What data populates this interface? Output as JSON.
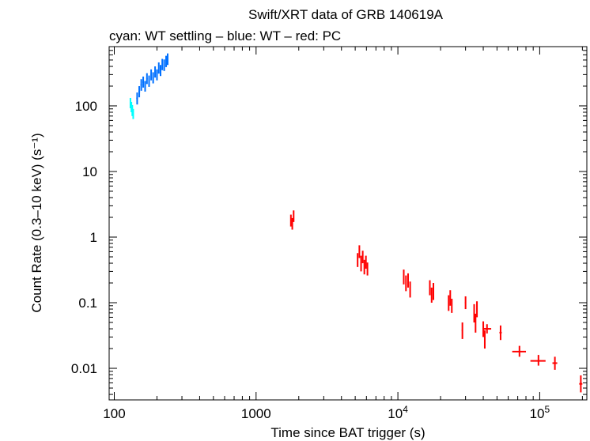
{
  "chart_data": {
    "type": "scatter",
    "title": "Swift/XRT data of GRB 140619A",
    "subtitle": "cyan: WT settling – blue: WT – red: PC",
    "xlabel": "Time since BAT trigger (s)",
    "ylabel": "Count Rate (0.3–10 keV) (s⁻¹)",
    "xscale": "log",
    "yscale": "log",
    "xlim": [
      92,
      215000
    ],
    "ylim": [
      0.0033,
      800
    ],
    "x_ticks": [
      {
        "value": 100,
        "label": "100"
      },
      {
        "value": 1000,
        "label": "1000"
      },
      {
        "value": 10000,
        "label": "10⁴"
      },
      {
        "value": 100000,
        "label": "10⁵"
      }
    ],
    "y_ticks": [
      {
        "value": 0.01,
        "label": "0.01"
      },
      {
        "value": 0.1,
        "label": "0.1"
      },
      {
        "value": 1,
        "label": "1"
      },
      {
        "value": 10,
        "label": "10"
      },
      {
        "value": 100,
        "label": "100"
      }
    ],
    "grid": false,
    "colors": {
      "wt_settling": "#00ffff",
      "wt": "#0070ff",
      "pc": "#ff0000"
    },
    "series": [
      {
        "name": "WT settling",
        "color": "#00ffff",
        "points": [
          {
            "x": 130,
            "y": 110,
            "xerr": [
              1,
              1
            ],
            "yerr": [
              18,
              22
            ]
          },
          {
            "x": 132,
            "y": 95,
            "xerr": [
              1,
              1
            ],
            "yerr": [
              15,
              20
            ]
          },
          {
            "x": 134,
            "y": 85,
            "xerr": [
              1,
              1
            ],
            "yerr": [
              15,
              18
            ]
          },
          {
            "x": 136,
            "y": 75,
            "xerr": [
              1,
              1
            ],
            "yerr": [
              12,
              15
            ]
          }
        ]
      },
      {
        "name": "WT",
        "color": "#0070ff",
        "points": [
          {
            "x": 145,
            "y": 130,
            "xerr": [
              2,
              2
            ],
            "yerr": [
              25,
              30
            ]
          },
          {
            "x": 150,
            "y": 165,
            "xerr": [
              2,
              2
            ],
            "yerr": [
              30,
              35
            ]
          },
          {
            "x": 155,
            "y": 210,
            "xerr": [
              2,
              2
            ],
            "yerr": [
              40,
              45
            ]
          },
          {
            "x": 160,
            "y": 230,
            "xerr": [
              2,
              2
            ],
            "yerr": [
              40,
              50
            ]
          },
          {
            "x": 165,
            "y": 200,
            "xerr": [
              2,
              2
            ],
            "yerr": [
              35,
              40
            ]
          },
          {
            "x": 170,
            "y": 260,
            "xerr": [
              2,
              2
            ],
            "yerr": [
              45,
              55
            ]
          },
          {
            "x": 176,
            "y": 240,
            "xerr": [
              2,
              2
            ],
            "yerr": [
              45,
              50
            ]
          },
          {
            "x": 182,
            "y": 300,
            "xerr": [
              2,
              2
            ],
            "yerr": [
              55,
              60
            ]
          },
          {
            "x": 188,
            "y": 270,
            "xerr": [
              2,
              2
            ],
            "yerr": [
              50,
              55
            ]
          },
          {
            "x": 194,
            "y": 330,
            "xerr": [
              2,
              2
            ],
            "yerr": [
              60,
              70
            ]
          },
          {
            "x": 200,
            "y": 300,
            "xerr": [
              2,
              2
            ],
            "yerr": [
              55,
              60
            ]
          },
          {
            "x": 206,
            "y": 380,
            "xerr": [
              2,
              2
            ],
            "yerr": [
              70,
              80
            ]
          },
          {
            "x": 212,
            "y": 350,
            "xerr": [
              2,
              2
            ],
            "yerr": [
              65,
              70
            ]
          },
          {
            "x": 218,
            "y": 430,
            "xerr": [
              2,
              2
            ],
            "yerr": [
              80,
              90
            ]
          },
          {
            "x": 225,
            "y": 420,
            "xerr": [
              2,
              2
            ],
            "yerr": [
              80,
              90
            ]
          },
          {
            "x": 232,
            "y": 480,
            "xerr": [
              2,
              2
            ],
            "yerr": [
              90,
              100
            ]
          },
          {
            "x": 238,
            "y": 520,
            "xerr": [
              2,
              2
            ],
            "yerr": [
              100,
              110
            ]
          }
        ]
      },
      {
        "name": "PC",
        "color": "#ff0000",
        "points": [
          {
            "x": 1760,
            "y": 1.8,
            "xerr": [
              15,
              15
            ],
            "yerr": [
              0.35,
              0.4
            ]
          },
          {
            "x": 1800,
            "y": 1.6,
            "xerr": [
              15,
              15
            ],
            "yerr": [
              0.3,
              0.35
            ]
          },
          {
            "x": 1840,
            "y": 2.1,
            "xerr": [
              15,
              15
            ],
            "yerr": [
              0.4,
              0.45
            ]
          },
          {
            "x": 5200,
            "y": 0.45,
            "xerr": [
              40,
              40
            ],
            "yerr": [
              0.1,
              0.12
            ]
          },
          {
            "x": 5350,
            "y": 0.6,
            "xerr": [
              40,
              40
            ],
            "yerr": [
              0.12,
              0.15
            ]
          },
          {
            "x": 5500,
            "y": 0.4,
            "xerr": [
              40,
              40
            ],
            "yerr": [
              0.1,
              0.12
            ]
          },
          {
            "x": 5650,
            "y": 0.5,
            "xerr": [
              40,
              40
            ],
            "yerr": [
              0.1,
              0.12
            ]
          },
          {
            "x": 5800,
            "y": 0.35,
            "xerr": [
              40,
              40
            ],
            "yerr": [
              0.08,
              0.1
            ]
          },
          {
            "x": 5950,
            "y": 0.42,
            "xerr": [
              40,
              40
            ],
            "yerr": [
              0.09,
              0.1
            ]
          },
          {
            "x": 6100,
            "y": 0.33,
            "xerr": [
              40,
              40
            ],
            "yerr": [
              0.07,
              0.08
            ]
          },
          {
            "x": 11000,
            "y": 0.25,
            "xerr": [
              80,
              80
            ],
            "yerr": [
              0.06,
              0.07
            ]
          },
          {
            "x": 11400,
            "y": 0.2,
            "xerr": [
              80,
              80
            ],
            "yerr": [
              0.05,
              0.06
            ]
          },
          {
            "x": 11800,
            "y": 0.22,
            "xerr": [
              80,
              80
            ],
            "yerr": [
              0.05,
              0.06
            ]
          },
          {
            "x": 12200,
            "y": 0.16,
            "xerr": [
              80,
              80
            ],
            "yerr": [
              0.04,
              0.05
            ]
          },
          {
            "x": 16800,
            "y": 0.17,
            "xerr": [
              120,
              120
            ],
            "yerr": [
              0.04,
              0.05
            ]
          },
          {
            "x": 17300,
            "y": 0.13,
            "xerr": [
              120,
              120
            ],
            "yerr": [
              0.03,
              0.04
            ]
          },
          {
            "x": 17800,
            "y": 0.15,
            "xerr": [
              120,
              120
            ],
            "yerr": [
              0.04,
              0.05
            ]
          },
          {
            "x": 22800,
            "y": 0.1,
            "xerr": [
              150,
              150
            ],
            "yerr": [
              0.025,
              0.03
            ]
          },
          {
            "x": 23400,
            "y": 0.12,
            "xerr": [
              150,
              150
            ],
            "yerr": [
              0.03,
              0.035
            ]
          },
          {
            "x": 24000,
            "y": 0.09,
            "xerr": [
              150,
              150
            ],
            "yerr": [
              0.02,
              0.025
            ]
          },
          {
            "x": 28500,
            "y": 0.038,
            "xerr": [
              300,
              300
            ],
            "yerr": [
              0.01,
              0.012
            ]
          },
          {
            "x": 30000,
            "y": 0.1,
            "xerr": [
              300,
              300
            ],
            "yerr": [
              0.02,
              0.025
            ]
          },
          {
            "x": 34500,
            "y": 0.07,
            "xerr": [
              300,
              300
            ],
            "yerr": [
              0.02,
              0.025
            ]
          },
          {
            "x": 35300,
            "y": 0.05,
            "xerr": [
              300,
              300
            ],
            "yerr": [
              0.015,
              0.018
            ]
          },
          {
            "x": 36100,
            "y": 0.08,
            "xerr": [
              300,
              300
            ],
            "yerr": [
              0.02,
              0.025
            ]
          },
          {
            "x": 40000,
            "y": 0.04,
            "xerr": [
              400,
              400
            ],
            "yerr": [
              0.01,
              0.012
            ]
          },
          {
            "x": 41000,
            "y": 0.028,
            "xerr": [
              400,
              400
            ],
            "yerr": [
              0.008,
              0.01
            ]
          },
          {
            "x": 42500,
            "y": 0.04,
            "xerr": [
              3000,
              3000
            ],
            "yerr": [
              0.006,
              0.007
            ]
          },
          {
            "x": 53000,
            "y": 0.035,
            "xerr": [
              1000,
              1000
            ],
            "yerr": [
              0.008,
              0.01
            ]
          },
          {
            "x": 72000,
            "y": 0.018,
            "xerr": [
              8000,
              8000
            ],
            "yerr": [
              0.003,
              0.004
            ]
          },
          {
            "x": 98000,
            "y": 0.013,
            "xerr": [
              12000,
              12000
            ],
            "yerr": [
              0.002,
              0.003
            ]
          },
          {
            "x": 128000,
            "y": 0.012,
            "xerr": [
              5000,
              5000
            ],
            "yerr": [
              0.0025,
              0.003
            ]
          },
          {
            "x": 195000,
            "y": 0.0058,
            "xerr": [
              5000,
              5000
            ],
            "yerr": [
              0.0015,
              0.002
            ]
          }
        ]
      }
    ]
  }
}
